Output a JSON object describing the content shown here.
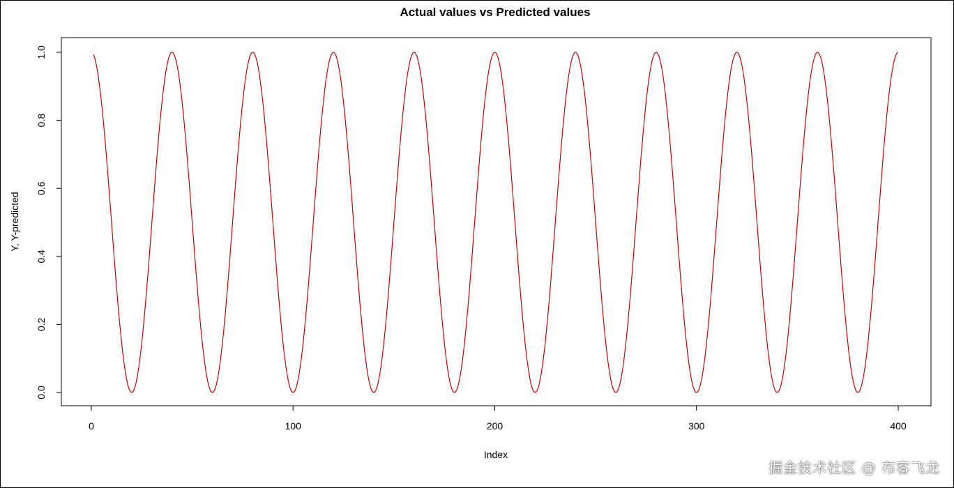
{
  "chart_data": {
    "type": "line",
    "title": "Actual values vs Predicted values",
    "xlabel": "Index",
    "ylabel": "Y, Y-predicted",
    "xlim": [
      1,
      400
    ],
    "ylim": [
      0,
      1
    ],
    "x_ticks": [
      0,
      100,
      200,
      300,
      400
    ],
    "y_ticks": [
      0.0,
      0.2,
      0.4,
      0.6,
      0.8,
      1.0
    ],
    "x_tick_labels": [
      "0",
      "100",
      "200",
      "300",
      "400"
    ],
    "y_tick_labels": [
      "0.0",
      "0.2",
      "0.4",
      "0.6",
      "0.8",
      "1.0"
    ],
    "grid": false,
    "series": [
      {
        "color": "#cc0000",
        "function": "(cos(2*pi*x/40)+1)/2",
        "x_start": 1,
        "x_end": 400,
        "x_step": 1,
        "period": 40,
        "peaks_x": [
          40,
          80,
          120,
          160,
          200,
          240,
          280,
          320,
          360,
          400
        ],
        "troughs_x": [
          20,
          60,
          100,
          140,
          180,
          220,
          260,
          300,
          340,
          380
        ]
      }
    ]
  },
  "watermark": "掘金技术社区 @ 布客飞龙"
}
